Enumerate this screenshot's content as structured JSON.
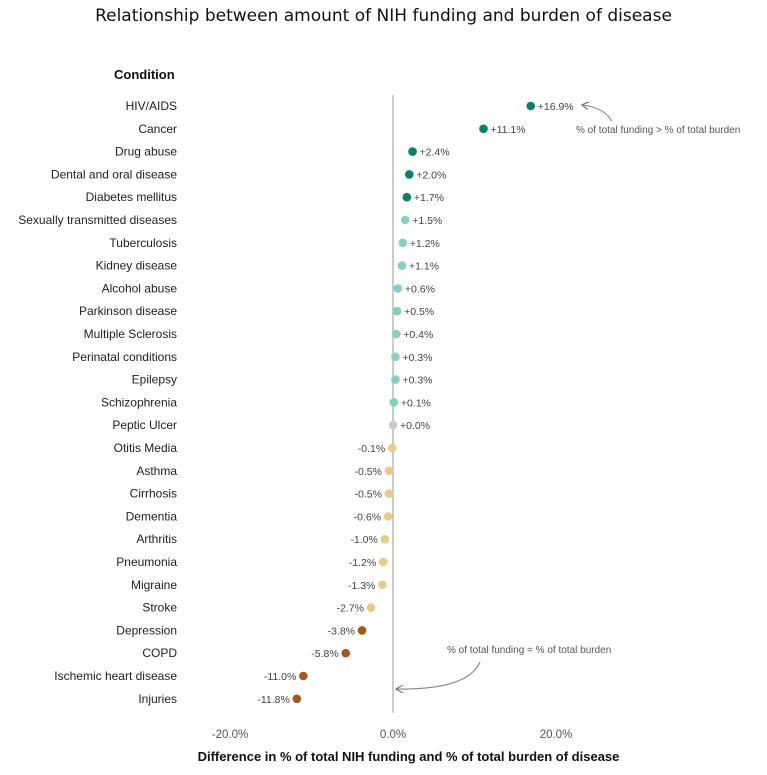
{
  "chart_data": {
    "type": "scatter",
    "title": "Relationship between amount of NIH funding and burden of disease",
    "ylabel": "Condition",
    "xlabel": "Difference in % of total NIH funding and % of total burden of disease",
    "xlim": [
      -24,
      22
    ],
    "xticks": [
      -20,
      0,
      20
    ],
    "xtick_labels": [
      "-20.0%",
      "0.0%",
      "20.0%"
    ],
    "categories": [
      "HIV/AIDS",
      "Cancer",
      "Drug abuse",
      "Dental and oral disease",
      "Diabetes mellitus",
      "Sexually transmitted diseases",
      "Tuberculosis",
      "Kidney disease",
      "Alcohol abuse",
      "Parkinson disease",
      "Multiple Sclerosis",
      "Perinatal conditions",
      "Epilepsy",
      "Schizophrenia",
      "Peptic Ulcer",
      "Otitis Media",
      "Asthma",
      "Cirrhosis",
      "Dementia",
      "Arthritis",
      "Pneumonia",
      "Migraine",
      "Stroke",
      "Depression",
      "COPD",
      "Ischemic heart disease",
      "Injuries"
    ],
    "values": [
      16.9,
      11.1,
      2.4,
      2.0,
      1.7,
      1.5,
      1.2,
      1.1,
      0.6,
      0.5,
      0.4,
      0.3,
      0.3,
      0.1,
      0.0,
      -0.1,
      -0.5,
      -0.5,
      -0.6,
      -1.0,
      -1.2,
      -1.3,
      -2.7,
      -3.8,
      -5.8,
      -11.0,
      -11.8
    ],
    "labels": [
      "+16.9%",
      "+11.1%",
      "+2.4%",
      "+2.0%",
      "+1.7%",
      "+1.5%",
      "+1.2%",
      "+1.1%",
      "+0.6%",
      "+0.5%",
      "+0.4%",
      "+0.3%",
      "+0.3%",
      "+0.1%",
      "+0.0%",
      "-0.1%",
      "-0.5%",
      "-0.5%",
      "-0.6%",
      "-1.0%",
      "-1.2%",
      "-1.3%",
      "-2.7%",
      "-3.8%",
      "-5.8%",
      "-11.0%",
      "-11.8%"
    ],
    "point_colors": [
      "#0b7f6c",
      "#0b7f6c",
      "#0b7f6c",
      "#0b7f6c",
      "#0b7f6c",
      "#86d0c3",
      "#86d0c3",
      "#86d0c3",
      "#86d0c3",
      "#86d0c3",
      "#86d0c3",
      "#86d0c3",
      "#86d0c3",
      "#86d0c3",
      "#cccccc",
      "#e9cc88",
      "#e9cc88",
      "#e9cc88",
      "#e9cc88",
      "#e9cc88",
      "#e9cc88",
      "#e9cc88",
      "#e9cc88",
      "#a6581c",
      "#a6581c",
      "#a6581c",
      "#a6581c"
    ],
    "annotations": [
      {
        "text": "% of total funding > % of total burden",
        "points_to": "HIV/AIDS"
      },
      {
        "text": "% of total funding = % of total burden",
        "points_to": "zero line"
      }
    ],
    "grid": false
  }
}
